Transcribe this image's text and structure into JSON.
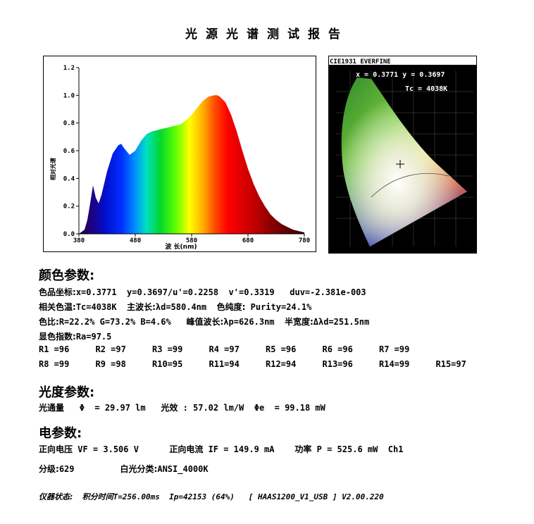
{
  "report_title": "光源光谱测试报告",
  "spectrum": {
    "y_label": "相对光谱",
    "x_label": "波 长(nm)",
    "y_ticks": [
      "0.0",
      "0.2",
      "0.4",
      "0.6",
      "0.8",
      "1.0",
      "1.2"
    ],
    "x_ticks": [
      "380",
      "480",
      "580",
      "680",
      "780"
    ]
  },
  "chart_data": {
    "type": "area",
    "title": "",
    "xlabel": "波 长(nm)",
    "ylabel": "相对光谱",
    "xlim": [
      380,
      780
    ],
    "ylim": [
      0,
      1.2
    ],
    "x": [
      380,
      390,
      395,
      400,
      405,
      410,
      415,
      420,
      430,
      440,
      450,
      455,
      460,
      470,
      480,
      490,
      500,
      510,
      520,
      530,
      540,
      550,
      560,
      570,
      580,
      590,
      600,
      610,
      620,
      626,
      630,
      640,
      650,
      660,
      670,
      680,
      690,
      700,
      710,
      720,
      730,
      740,
      750,
      760,
      770,
      780
    ],
    "values": [
      0.0,
      0.03,
      0.1,
      0.22,
      0.35,
      0.26,
      0.22,
      0.28,
      0.45,
      0.58,
      0.64,
      0.65,
      0.62,
      0.57,
      0.6,
      0.67,
      0.72,
      0.74,
      0.75,
      0.76,
      0.77,
      0.78,
      0.79,
      0.82,
      0.86,
      0.91,
      0.96,
      0.99,
      1.0,
      1.0,
      0.99,
      0.95,
      0.86,
      0.74,
      0.6,
      0.47,
      0.36,
      0.27,
      0.2,
      0.14,
      0.1,
      0.07,
      0.05,
      0.03,
      0.02,
      0.01
    ]
  },
  "cie": {
    "header": "CIE1931 EVERFINE",
    "xy": "x = 0.3771  y = 0.3697",
    "tc": "Tc = 4038K"
  },
  "color_params": {
    "heading": "颜色参数:",
    "coord_label": "色品坐标:",
    "coord_value": "x=0.3771  y=0.3697/u'=0.2258  v'=0.3319   duv=-2.381e-003",
    "cct_label": "相关色温:",
    "cct_value": "Tc=4038K",
    "dom_label": "主波长:",
    "dom_value": "λd=580.4nm",
    "purity_label": "色纯度:",
    "purity_value": "Purity=24.1%",
    "ratio_label": "色比:",
    "ratio_value": "R=22.2% G=73.2% B=4.6%",
    "peak_label": "峰值波长:",
    "peak_value": "λp=626.3nm",
    "fwhm_label": "半宽度:",
    "fwhm_value": "Δλd=251.5nm",
    "cri_label": "显色指数:",
    "cri_value": "Ra=97.5",
    "ri_row1": [
      "R1 =96",
      "R2 =97",
      "R3 =99",
      "R4 =97",
      "R5 =96",
      "R6 =96",
      "R7 =99"
    ],
    "ri_row2": [
      "R8 =99",
      "R9 =98",
      "R10=95",
      "R11=94",
      "R12=94",
      "R13=96",
      "R14=99",
      "R15=97"
    ]
  },
  "photo_params": {
    "heading": "光度参数:",
    "flux_label": "光通量",
    "flux_value": "Φ  = 29.97 lm",
    "eff_label": "光效",
    "eff_value": ": 57.02 lm/W",
    "pe_value": "Φe  = 99.18 mW"
  },
  "elec_params": {
    "heading": "电参数:",
    "vf_label": "正向电压",
    "vf_value": "VF = 3.506 V",
    "if_label": "正向电流",
    "if_value": "IF = 149.9 mA",
    "p_label": "功率",
    "p_value": "P = 525.6 mW",
    "channel": "Ch1",
    "grade_label": "分级:",
    "grade_value": "629",
    "white_label": "白光分类:",
    "white_value": "ANSI_4000K"
  },
  "footer": {
    "instrument_label": "仪器状态:",
    "integral_label": "积分时间",
    "text": "T=256.00ms  Ip=42153 (64%)   [ HAAS1200_V1_USB ] V2.00.220"
  }
}
